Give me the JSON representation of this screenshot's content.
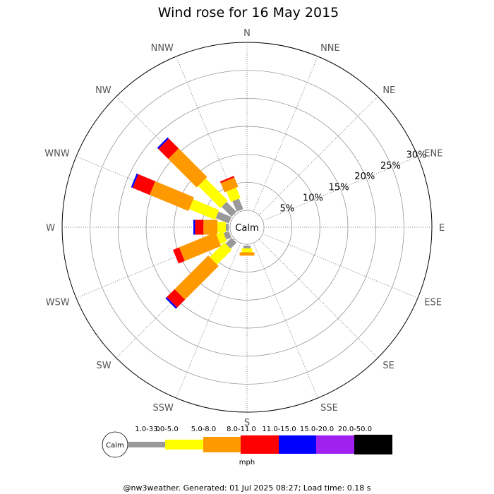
{
  "chart_data": {
    "type": "wind-rose",
    "title": "Wind rose for 16 May 2015",
    "directions": [
      "N",
      "NNE",
      "NE",
      "ENE",
      "E",
      "ESE",
      "SE",
      "SSE",
      "S",
      "SSW",
      "SW",
      "WSW",
      "W",
      "WNW",
      "NW",
      "NNW"
    ],
    "ring_labels": [
      "5%",
      "10%",
      "15%",
      "20%",
      "25%",
      "30%"
    ],
    "rlim": [
      0,
      30
    ],
    "calm_label": "Calm",
    "speed_bins": [
      "1.0-3.0",
      "3.0-5.0",
      "5.0-8.0",
      "8.0-11.0",
      "11.0-15.0",
      "15.0-20.0",
      "20.0-50.0"
    ],
    "speed_colors": [
      "#999999",
      "#ffff00",
      "#ff9900",
      "#ff0000",
      "#0000ff",
      "#a020f0",
      "#000000"
    ],
    "speed_unit": "mph",
    "series": [
      {
        "direction": "NNW",
        "values": [
          2.0,
          2.0,
          1.8,
          0.3,
          0,
          0,
          0
        ]
      },
      {
        "direction": "NW",
        "values": [
          2.5,
          5.6,
          7.2,
          2.5,
          0.3,
          0,
          0
        ]
      },
      {
        "direction": "WNW",
        "values": [
          2.5,
          5.0,
          7.5,
          3.3,
          0.3,
          0,
          0
        ]
      },
      {
        "direction": "W",
        "values": [
          0.5,
          1.5,
          2.5,
          1.5,
          0.3,
          0,
          0
        ]
      },
      {
        "direction": "WSW",
        "values": [
          1.0,
          1.3,
          7.0,
          1.2,
          0,
          0,
          0
        ]
      },
      {
        "direction": "SW",
        "values": [
          1.5,
          3.7,
          8.5,
          2.0,
          0.3,
          0,
          0
        ]
      },
      {
        "direction": "S",
        "values": [
          0.5,
          0.7,
          0.6,
          0,
          0,
          0,
          0
        ]
      }
    ]
  },
  "footer": "@nw3weather. Generated: 01 Jul 2025 08:27; Load time: 0.18 s"
}
